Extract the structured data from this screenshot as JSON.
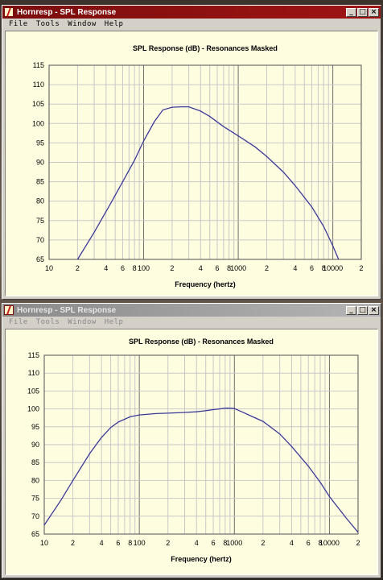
{
  "windows": [
    {
      "title": "Hornresp - SPL Response",
      "active": true,
      "menu": [
        "File",
        "Tools",
        "Window",
        "Help"
      ],
      "controls": [
        "minimize-icon",
        "maximize-icon",
        "close-icon"
      ],
      "chart_index": 0
    },
    {
      "title": "Hornresp - SPL Response",
      "active": false,
      "menu": [
        "File",
        "Tools",
        "Window",
        "Help"
      ],
      "controls": [
        "minimize-icon",
        "maximize-icon",
        "close-icon"
      ],
      "chart_index": 1
    }
  ],
  "colors": {
    "curve": "#3a3a9a",
    "plot_background": "#fffde0",
    "grid_minor": "#c8c8c8",
    "grid_major": "#6e6e6e",
    "titlebar_active": "#8b1010"
  },
  "chart_data": [
    {
      "type": "line",
      "title": "SPL Response (dB) - Resonances Masked",
      "xlabel": "Frequency (hertz)",
      "ylabel": "",
      "x_scale": "log",
      "xlim": [
        10,
        20000
      ],
      "ylim": [
        65,
        115
      ],
      "y_ticks": [
        115,
        110,
        105,
        100,
        95,
        90,
        85,
        80,
        75,
        70,
        65
      ],
      "x_tick_labels": [
        {
          "x": 10,
          "label": "10"
        },
        {
          "x": 20,
          "label": "2"
        },
        {
          "x": 40,
          "label": "4"
        },
        {
          "x": 60,
          "label": "6"
        },
        {
          "x": 80,
          "label": "8"
        },
        {
          "x": 100,
          "label": "100"
        },
        {
          "x": 200,
          "label": "2"
        },
        {
          "x": 400,
          "label": "4"
        },
        {
          "x": 600,
          "label": "6"
        },
        {
          "x": 800,
          "label": "8"
        },
        {
          "x": 1000,
          "label": "1000"
        },
        {
          "x": 2000,
          "label": "2"
        },
        {
          "x": 4000,
          "label": "4"
        },
        {
          "x": 6000,
          "label": "6"
        },
        {
          "x": 8000,
          "label": "8"
        },
        {
          "x": 10000,
          "label": "10000"
        },
        {
          "x": 20000,
          "label": "2"
        }
      ],
      "grid": true,
      "series": [
        {
          "x": [
            20,
            30,
            45,
            60,
            80,
            100,
            130,
            160,
            200,
            250,
            300,
            400,
            500,
            700,
            1000,
            1500,
            2000,
            3000,
            4000,
            6000,
            8000,
            10000,
            11500
          ],
          "y": [
            65,
            72,
            79.5,
            85,
            90.5,
            95.5,
            100.5,
            103.5,
            104.2,
            104.3,
            104.3,
            103.2,
            101.8,
            99.2,
            96.8,
            94,
            91.5,
            87.5,
            84,
            78.5,
            73.5,
            68.5,
            65
          ]
        }
      ]
    },
    {
      "type": "line",
      "title": "SPL Response (dB) - Resonances Masked",
      "xlabel": "Frequency (hertz)",
      "ylabel": "",
      "x_scale": "log",
      "xlim": [
        10,
        20000
      ],
      "ylim": [
        65,
        115
      ],
      "y_ticks": [
        115,
        110,
        105,
        100,
        95,
        90,
        85,
        80,
        75,
        70,
        65
      ],
      "x_tick_labels": [
        {
          "x": 10,
          "label": "10"
        },
        {
          "x": 20,
          "label": "2"
        },
        {
          "x": 40,
          "label": "4"
        },
        {
          "x": 60,
          "label": "6"
        },
        {
          "x": 80,
          "label": "8"
        },
        {
          "x": 100,
          "label": "100"
        },
        {
          "x": 200,
          "label": "2"
        },
        {
          "x": 400,
          "label": "4"
        },
        {
          "x": 600,
          "label": "6"
        },
        {
          "x": 800,
          "label": "8"
        },
        {
          "x": 1000,
          "label": "1000"
        },
        {
          "x": 2000,
          "label": "2"
        },
        {
          "x": 4000,
          "label": "4"
        },
        {
          "x": 6000,
          "label": "6"
        },
        {
          "x": 8000,
          "label": "8"
        },
        {
          "x": 10000,
          "label": "10000"
        },
        {
          "x": 20000,
          "label": "2"
        }
      ],
      "grid": true,
      "series": [
        {
          "x": [
            10,
            15,
            20,
            30,
            40,
            50,
            60,
            80,
            100,
            150,
            200,
            300,
            400,
            500,
            600,
            700,
            800,
            900,
            1000,
            1200,
            1500,
            2000,
            3000,
            4000,
            6000,
            8000,
            10000,
            15000,
            20000
          ],
          "y": [
            67.5,
            74.5,
            80,
            87.5,
            92,
            94.8,
            96.3,
            97.8,
            98.3,
            98.7,
            98.8,
            99,
            99.2,
            99.5,
            99.8,
            100,
            100.2,
            100.2,
            100.1,
            99.2,
            98,
            96.5,
            93,
            89.5,
            84,
            79.5,
            75.5,
            69.5,
            65.5
          ]
        }
      ]
    }
  ]
}
